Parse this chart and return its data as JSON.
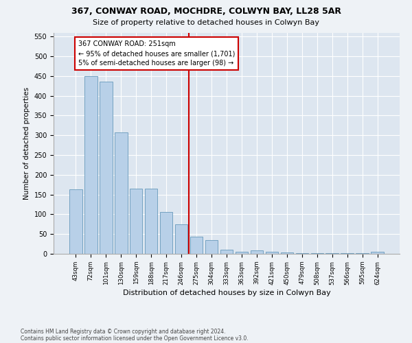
{
  "title1": "367, CONWAY ROAD, MOCHDRE, COLWYN BAY, LL28 5AR",
  "title2": "Size of property relative to detached houses in Colwyn Bay",
  "xlabel": "Distribution of detached houses by size in Colwyn Bay",
  "ylabel": "Number of detached properties",
  "categories": [
    "43sqm",
    "72sqm",
    "101sqm",
    "130sqm",
    "159sqm",
    "188sqm",
    "217sqm",
    "246sqm",
    "275sqm",
    "304sqm",
    "333sqm",
    "363sqm",
    "392sqm",
    "421sqm",
    "450sqm",
    "479sqm",
    "508sqm",
    "537sqm",
    "566sqm",
    "595sqm",
    "624sqm"
  ],
  "values": [
    163,
    450,
    435,
    307,
    165,
    165,
    106,
    75,
    43,
    34,
    10,
    5,
    8,
    5,
    3,
    2,
    2,
    2,
    2,
    2,
    5
  ],
  "bar_color": "#b8d0e8",
  "bar_edge_color": "#6699bb",
  "vline_color": "#cc0000",
  "annotation_line1": "367 CONWAY ROAD: 251sqm",
  "annotation_line2": "← 95% of detached houses are smaller (1,701)",
  "annotation_line3": "5% of semi-detached houses are larger (98) →",
  "annotation_box_color": "#ffffff",
  "annotation_box_edge": "#cc0000",
  "ylim": [
    0,
    560
  ],
  "yticks": [
    0,
    50,
    100,
    150,
    200,
    250,
    300,
    350,
    400,
    450,
    500,
    550
  ],
  "footer1": "Contains HM Land Registry data © Crown copyright and database right 2024.",
  "footer2": "Contains public sector information licensed under the Open Government Licence v3.0.",
  "bg_color": "#eef2f6",
  "plot_bg_color": "#dde6f0"
}
